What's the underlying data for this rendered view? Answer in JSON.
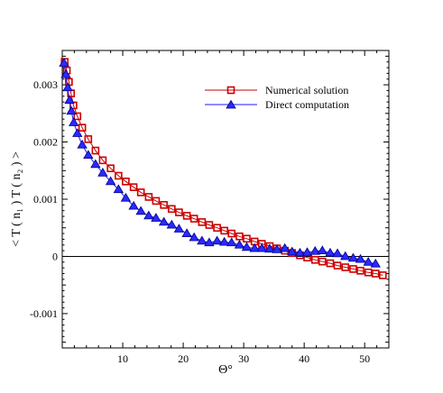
{
  "chart_data": {
    "type": "line",
    "title": "",
    "xlabel": "Θ°",
    "ylabel": "< T ( n₁ ) T ( n₂ ) >",
    "xlim": [
      0,
      54
    ],
    "ylim": [
      -0.0016,
      0.0036
    ],
    "x_ticks": [
      10,
      20,
      30,
      40,
      50
    ],
    "x_tick_labels": [
      "10",
      "20",
      "30",
      "40",
      "50"
    ],
    "y_ticks": [
      -0.001,
      0,
      0.001,
      0.002,
      0.003
    ],
    "y_tick_labels": [
      "-0.001",
      "0",
      "0.001",
      "0.002",
      "0.003"
    ],
    "grid": false,
    "zero_line": true,
    "legend_position": "top-right",
    "series": [
      {
        "name": "Numerical solution",
        "color": "#cc0000",
        "marker": "square",
        "x": [
          0.4,
          0.75,
          1.1,
          1.45,
          1.85,
          2.5,
          3.3,
          4.3,
          5.5,
          6.7,
          8.0,
          9.3,
          10.5,
          11.8,
          13.0,
          14.3,
          15.5,
          16.8,
          18.1,
          19.3,
          20.6,
          21.8,
          23.1,
          24.3,
          25.6,
          26.8,
          28.0,
          29.3,
          30.5,
          31.8,
          33.0,
          34.3,
          35.5,
          36.8,
          38.0,
          39.3,
          40.5,
          41.8,
          43.0,
          44.3,
          45.5,
          46.8,
          48.1,
          49.3,
          50.6,
          51.8,
          53.0
        ],
        "y": [
          0.0034,
          0.00325,
          0.00305,
          0.00285,
          0.00264,
          0.00245,
          0.00225,
          0.00205,
          0.00185,
          0.00168,
          0.00154,
          0.00141,
          0.00131,
          0.00121,
          0.00112,
          0.00104,
          0.00097,
          0.0009,
          0.00083,
          0.00077,
          0.00071,
          0.00066,
          0.0006,
          0.00055,
          0.0005,
          0.00045,
          0.0004,
          0.00035,
          0.00031,
          0.00026,
          0.00022,
          0.00018,
          0.00014,
          0.0001,
          6e-05,
          2e-05,
          -2e-05,
          -6e-05,
          -9e-05,
          -0.00012,
          -0.00016,
          -0.00019,
          -0.00022,
          -0.00025,
          -0.00028,
          -0.0003,
          -0.00033
        ]
      },
      {
        "name": "Direct computation",
        "color": "#1a1aff",
        "marker": "triangle",
        "x": [
          0.3,
          0.6,
          0.9,
          1.2,
          1.5,
          1.9,
          2.5,
          3.3,
          4.3,
          5.5,
          6.7,
          8.0,
          9.3,
          10.5,
          11.8,
          13.0,
          14.3,
          15.5,
          16.8,
          18.1,
          19.3,
          20.6,
          21.8,
          23.1,
          24.3,
          25.6,
          26.8,
          28.0,
          29.3,
          30.5,
          31.8,
          33.0,
          34.3,
          35.5,
          36.8,
          38.0,
          39.3,
          40.5,
          41.8,
          43.0,
          44.3,
          45.5,
          46.8,
          48.1,
          49.3,
          50.6,
          51.8
        ],
        "y": [
          0.00338,
          0.00318,
          0.00295,
          0.00273,
          0.00254,
          0.00234,
          0.00215,
          0.00195,
          0.00177,
          0.00161,
          0.00146,
          0.00131,
          0.00117,
          0.00102,
          0.00088,
          0.00079,
          0.00071,
          0.00067,
          0.0006,
          0.00055,
          0.00048,
          0.0004,
          0.00033,
          0.00027,
          0.00024,
          0.00027,
          0.00025,
          0.00024,
          0.0002,
          0.00016,
          0.00014,
          0.00014,
          0.00013,
          0.00012,
          0.00014,
          8e-05,
          6e-05,
          7e-05,
          9e-05,
          0.0001,
          6e-05,
          5e-05,
          0.0,
          -3e-05,
          -5e-05,
          -0.0001,
          -0.00013
        ]
      }
    ]
  }
}
